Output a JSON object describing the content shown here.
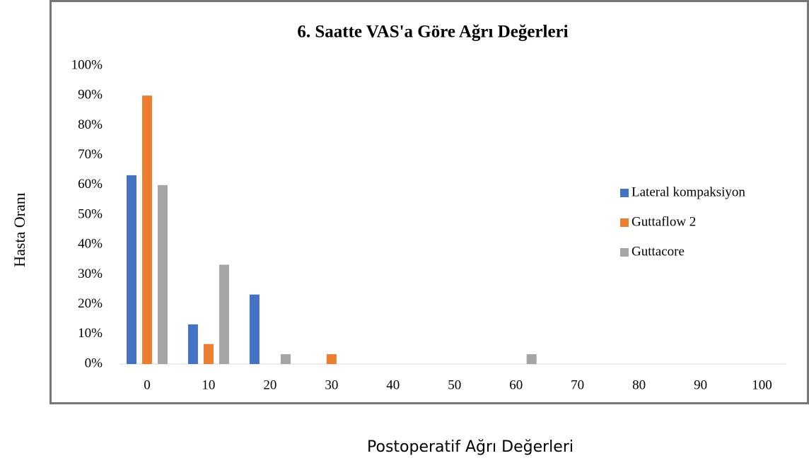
{
  "chart_data": {
    "type": "bar",
    "title": "6. Saatte VAS'a Göre Ağrı Değerleri",
    "x_label": "Postoperatif Ağrı Değerleri",
    "y_label": "Hasta Oranı",
    "categories": [
      "0",
      "10",
      "20",
      "30",
      "40",
      "50",
      "60",
      "70",
      "80",
      "90",
      "100"
    ],
    "series": [
      {
        "name": "Lateral kompaksiyon",
        "color": "#4472c4",
        "values": [
          63.3,
          13.3,
          23.3,
          0,
          0,
          0,
          0,
          0,
          0,
          0,
          0
        ]
      },
      {
        "name": "Guttaflow 2",
        "color": "#ed7d31",
        "values": [
          90,
          6.7,
          0,
          3.3,
          0,
          0,
          0,
          0,
          0,
          0,
          0
        ]
      },
      {
        "name": "Guttacore",
        "color": "#a5a5a5",
        "values": [
          60,
          33.3,
          3.3,
          0,
          0,
          0,
          3.3,
          0,
          0,
          0,
          0
        ]
      }
    ],
    "ylim": [
      0,
      100
    ],
    "yticks": [
      {
        "value": 0,
        "label": "0%"
      },
      {
        "value": 10,
        "label": "10%"
      },
      {
        "value": 20,
        "label": "20%"
      },
      {
        "value": 30,
        "label": "30%"
      },
      {
        "value": 40,
        "label": "40%"
      },
      {
        "value": 50,
        "label": "50%"
      },
      {
        "value": 60,
        "label": "60%"
      },
      {
        "value": 70,
        "label": "70%"
      },
      {
        "value": 80,
        "label": "80%"
      },
      {
        "value": 90,
        "label": "90%"
      },
      {
        "value": 100,
        "label": "100%"
      }
    ],
    "legend": "right"
  }
}
